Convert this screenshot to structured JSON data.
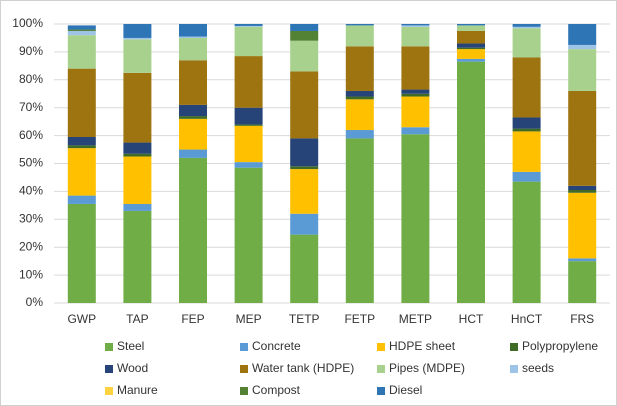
{
  "chart_data": {
    "type": "stacked_bar",
    "categories": [
      "GWP",
      "TAP",
      "FEP",
      "MEP",
      "TETP",
      "FETP",
      "METP",
      "HCT",
      "HnCT",
      "FRS"
    ],
    "ylim": [
      0,
      100
    ],
    "yticks": [
      {
        "value": 0,
        "label": "0%"
      },
      {
        "value": 10,
        "label": "10%"
      },
      {
        "value": 20,
        "label": "20%"
      },
      {
        "value": 30,
        "label": "30%"
      },
      {
        "value": 40,
        "label": "40%"
      },
      {
        "value": 50,
        "label": "50%"
      },
      {
        "value": 60,
        "label": "60%"
      },
      {
        "value": 70,
        "label": "70%"
      },
      {
        "value": 80,
        "label": "80%"
      },
      {
        "value": 90,
        "label": "90%"
      },
      {
        "value": 100,
        "label": "100%"
      }
    ],
    "grid": true,
    "legend": "bottom",
    "series": [
      {
        "name": "Steel",
        "color": "#70ad47",
        "values": [
          35.5,
          33,
          52,
          48.5,
          24.5,
          59,
          60.5,
          86.5,
          43.5,
          15
        ]
      },
      {
        "name": "Concrete",
        "color": "#5b9bd5",
        "values": [
          3,
          2.5,
          3,
          2,
          7.5,
          3,
          2.5,
          1,
          3.5,
          1
        ]
      },
      {
        "name": "HDPE sheet",
        "color": "#ffc000",
        "values": [
          17,
          17,
          11,
          13,
          16,
          11,
          11,
          3.5,
          14.5,
          23.5
        ]
      },
      {
        "name": "Polypropylene",
        "color": "#3f6b26",
        "values": [
          1,
          1,
          1,
          0.5,
          1,
          1,
          1,
          0.5,
          1,
          1
        ]
      },
      {
        "name": "Wood",
        "color": "#264478",
        "values": [
          3,
          4,
          4,
          6,
          10,
          2,
          1.5,
          1.5,
          4,
          1.5
        ]
      },
      {
        "name": "Water tank (HDPE)",
        "color": "#9e7410",
        "values": [
          24.5,
          25,
          16,
          18.5,
          24,
          16,
          15.5,
          4.5,
          21.5,
          34
        ]
      },
      {
        "name": "Pipes (MDPE)",
        "color": "#a9d18e",
        "values": [
          12,
          12,
          8,
          10.5,
          11,
          7.5,
          7,
          2,
          10.5,
          15
        ]
      },
      {
        "name": "seeds",
        "color": "#9dc3e6",
        "values": [
          1.5,
          0.5,
          0.5,
          0.3,
          0,
          0,
          0.5,
          0,
          0.5,
          1.5
        ]
      },
      {
        "name": "Manure",
        "color": "#ffd23f",
        "values": [
          0,
          0,
          0,
          0,
          0,
          0,
          0,
          0,
          0,
          0
        ]
      },
      {
        "name": "Compost",
        "color": "#548235",
        "values": [
          0.5,
          0,
          0,
          0,
          3.5,
          0,
          0,
          0,
          0,
          0
        ]
      },
      {
        "name": "Diesel",
        "color": "#2e75b6",
        "values": [
          1.5,
          5,
          4.5,
          0.7,
          2.5,
          0.5,
          0.5,
          0.5,
          1,
          7.5
        ]
      }
    ]
  }
}
